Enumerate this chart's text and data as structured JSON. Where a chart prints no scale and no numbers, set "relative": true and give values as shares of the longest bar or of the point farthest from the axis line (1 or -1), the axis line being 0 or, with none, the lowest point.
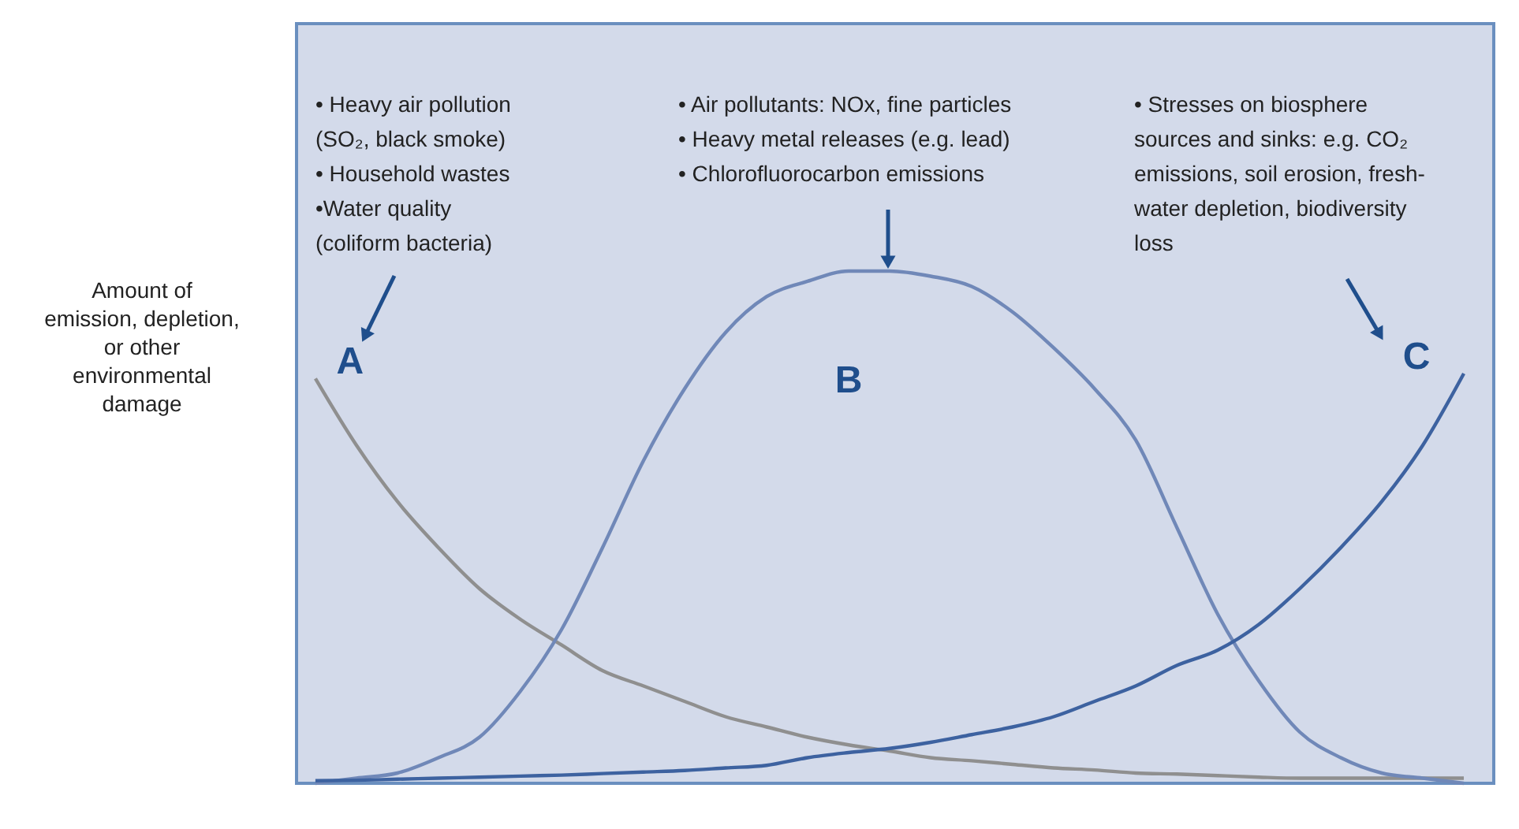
{
  "chart_data": {
    "type": "line",
    "relative": true,
    "ylabel": "Amount of\nemission, depletion,\nor other\nenvironmental\ndamage",
    "categories": [
      null,
      null,
      null,
      null,
      null,
      null,
      null,
      null,
      null,
      null,
      null,
      null,
      null,
      null,
      null,
      null,
      null,
      null,
      null,
      null,
      null,
      null,
      null,
      null,
      null,
      null,
      null,
      null,
      null
    ],
    "series": [
      {
        "name": "A",
        "color": "#8f8f8f",
        "values": [
          0.79,
          0.66,
          0.55,
          0.46,
          0.38,
          0.32,
          0.27,
          0.22,
          0.19,
          0.16,
          0.13,
          0.11,
          0.09,
          0.075,
          0.063,
          0.05,
          0.044,
          0.037,
          0.03,
          0.026,
          0.02,
          0.018,
          0.015,
          0.012,
          0.01,
          0.01,
          0.01,
          0.01,
          0.01
        ]
      },
      {
        "name": "B",
        "color": "#7088b8",
        "values": [
          0.0,
          0.01,
          0.02,
          0.05,
          0.09,
          0.18,
          0.3,
          0.46,
          0.63,
          0.77,
          0.88,
          0.95,
          0.98,
          1.0,
          1.0,
          0.99,
          0.97,
          0.92,
          0.85,
          0.77,
          0.67,
          0.5,
          0.33,
          0.2,
          0.1,
          0.05,
          0.02,
          0.01,
          0.0
        ]
      },
      {
        "name": "C",
        "color": "#3d62a0",
        "values": [
          0.005,
          0.006,
          0.008,
          0.01,
          0.012,
          0.014,
          0.016,
          0.019,
          0.022,
          0.025,
          0.03,
          0.035,
          0.05,
          0.06,
          0.068,
          0.08,
          0.095,
          0.11,
          0.13,
          0.16,
          0.19,
          0.23,
          0.26,
          0.31,
          0.38,
          0.46,
          0.55,
          0.66,
          0.8
        ]
      }
    ],
    "annotations": [
      "• Heavy air pollution\n   (SO₂, black smoke)\n• Household wastes\n•Water quality\n   (coliform bacteria)",
      "• Air pollutants: NOx, fine particles\n• Heavy metal releases (e.g. lead)\n• Chlorofluorocarbon emissions",
      "• Stresses on biosphere\n   sources and sinks: e.g. CO₂\n   emissions, soil erosion, fresh-\n   water depletion, biodiversity\n   loss"
    ],
    "legend": false,
    "marker": "none",
    "line_style": "solid"
  }
}
